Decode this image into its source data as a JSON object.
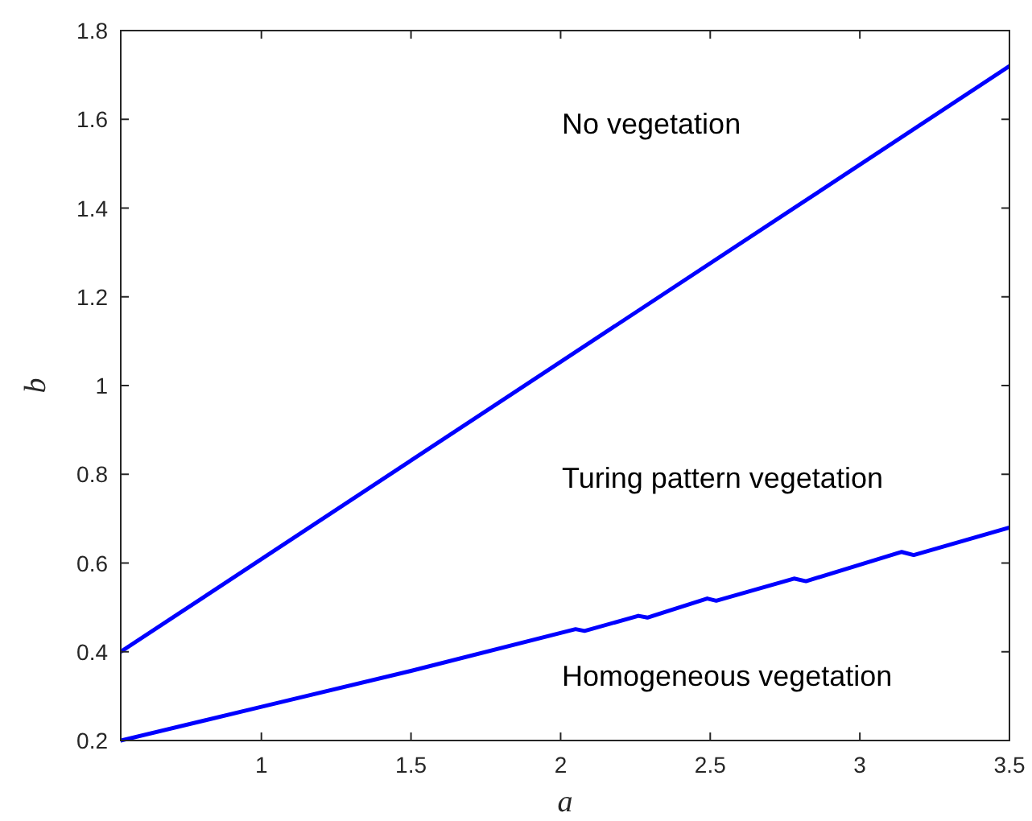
{
  "chart_data": {
    "type": "line",
    "xlabel": "a",
    "ylabel": "b",
    "xlim": [
      0.53,
      3.5
    ],
    "ylim": [
      0.2,
      1.8
    ],
    "xticks": [
      1,
      1.5,
      2,
      2.5,
      3,
      3.5
    ],
    "yticks": [
      0.2,
      0.4,
      0.6,
      0.8,
      1,
      1.2,
      1.4,
      1.6,
      1.8
    ],
    "grid": false,
    "marker": "none",
    "line_style": "solid",
    "series": [
      {
        "color": "#0000ff",
        "x": [
          0.53,
          3.5
        ],
        "values": [
          0.4,
          1.72
        ]
      },
      {
        "color": "#0000ff",
        "x": [
          0.53,
          1,
          1.5,
          2.05,
          2.08,
          2.26,
          2.29,
          2.49,
          2.52,
          2.78,
          2.82,
          3.14,
          3.18,
          3.5
        ],
        "values": [
          0.2,
          0.276,
          0.357,
          0.451,
          0.447,
          0.481,
          0.477,
          0.52,
          0.515,
          0.565,
          0.559,
          0.625,
          0.618,
          0.68
        ]
      }
    ],
    "annotations": [
      "No vegetation",
      "Turing pattern vegetation",
      "Homogeneous vegetation"
    ]
  }
}
